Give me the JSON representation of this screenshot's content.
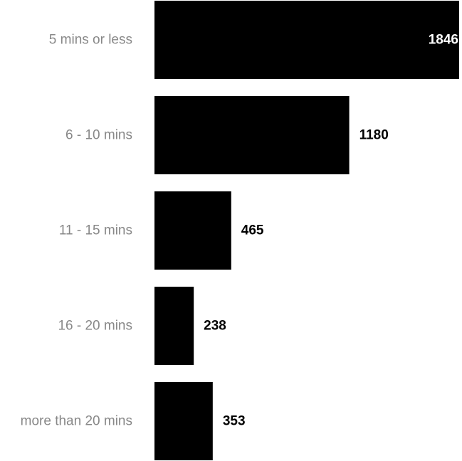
{
  "chart_data": {
    "type": "bar",
    "orientation": "horizontal",
    "categories": [
      "5 mins or less",
      "6 - 10 mins",
      "11 - 15 mins",
      "16 - 20 mins",
      "more than 20 mins"
    ],
    "values": [
      1846,
      1180,
      465,
      238,
      353
    ],
    "data_labels": [
      "1846",
      "1180",
      "465",
      "238",
      "353"
    ],
    "title": "",
    "xlabel": "",
    "ylabel": "",
    "xlim": [
      0,
      1846
    ],
    "grid": false,
    "legend": "none",
    "colors": {
      "bar": "#000000",
      "category_label": "#888888",
      "value_label": "#000000"
    }
  }
}
